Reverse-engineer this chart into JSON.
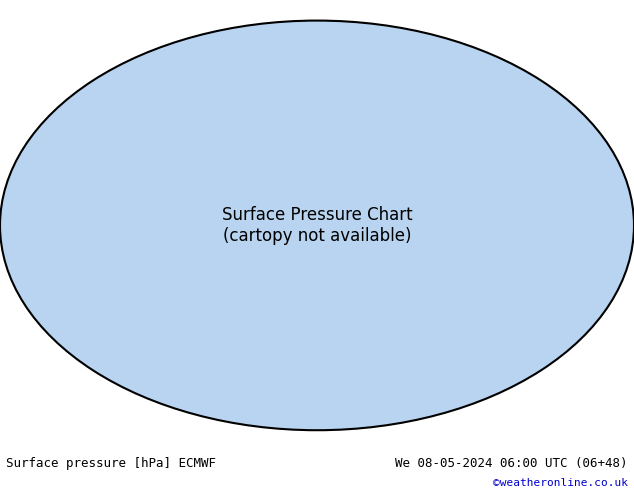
{
  "title_left": "Surface pressure [hPa] ECMWF",
  "title_right": "We 08-05-2024 06:00 UTC (06+48)",
  "copyright": "©weatheronline.co.uk",
  "bg_color": "#ffffff",
  "map_bg": "#ccddff",
  "land_color_low": "#aaccaa",
  "land_color_high": "#999999",
  "contour_interval": 4,
  "p_min": 960,
  "p_max": 1040,
  "label_color_black": "#000000",
  "label_color_red": "#cc0000",
  "label_color_blue": "#0000cc",
  "thick_contour_value": 1013,
  "font_size_labels": 7,
  "font_size_footer": 9,
  "figsize": [
    6.34,
    4.9
  ],
  "dpi": 100
}
